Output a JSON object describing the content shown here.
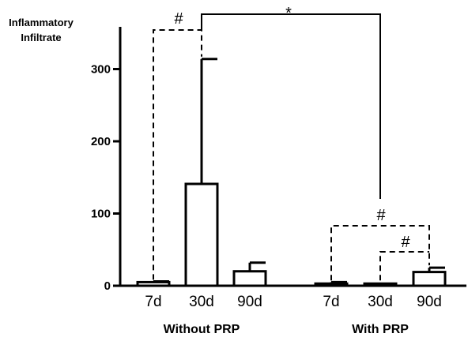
{
  "chart_data": {
    "type": "bar",
    "ylabel_lines": [
      "Inflammatory",
      "Infiltrate"
    ],
    "yticks": [
      0,
      100,
      200,
      300
    ],
    "ylim": [
      0,
      355
    ],
    "groups": [
      {
        "label": "Without PRP",
        "bars": [
          {
            "category": "7d",
            "value": 5,
            "error": 1
          },
          {
            "category": "30d",
            "value": 141,
            "error": 173
          },
          {
            "category": "90d",
            "value": 20,
            "error": 12
          }
        ]
      },
      {
        "label": "With PRP",
        "bars": [
          {
            "category": "7d",
            "value": 3,
            "error": 2
          },
          {
            "category": "30d",
            "value": 3,
            "error": 0
          },
          {
            "category": "90d",
            "value": 19,
            "error": 6
          }
        ]
      }
    ],
    "significance": [
      {
        "symbol": "#",
        "from": "Without PRP 7d",
        "to": "Without PRP 30d",
        "style": "dashed"
      },
      {
        "symbol": "*",
        "from": "Without PRP 30d",
        "to": "With PRP",
        "style": "solid"
      },
      {
        "symbol": "#",
        "from": "With PRP 7d",
        "to": "With PRP 90d",
        "style": "dashed"
      },
      {
        "symbol": "#",
        "from": "With PRP 30d",
        "to": "With PRP 90d",
        "style": "dashed"
      }
    ],
    "grid": false,
    "legend": "none"
  }
}
